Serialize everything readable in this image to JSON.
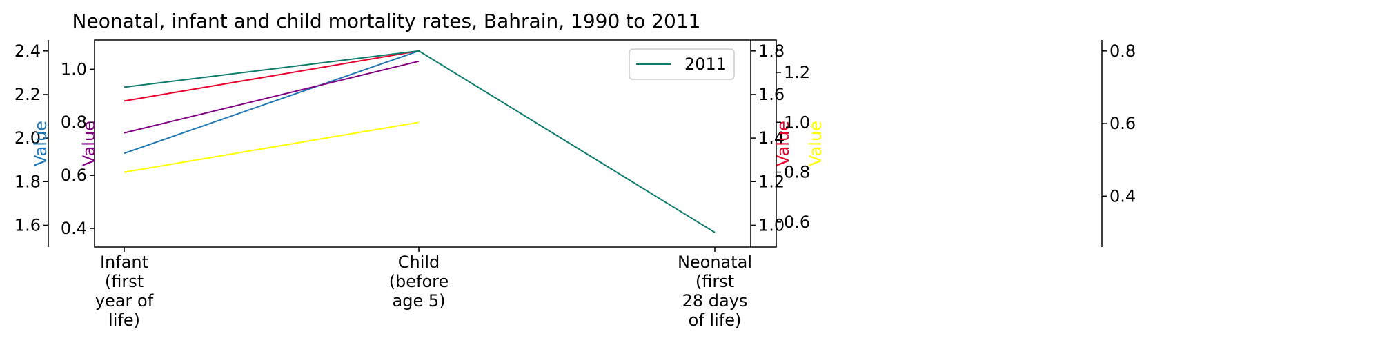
{
  "chart_data": {
    "type": "line",
    "title": "Neonatal, infant and child mortality rates, Bahrain, 1990 to 2011",
    "categories": [
      "Infant\n(first\nyear of\nlife)",
      "Child\n(before\nage 5)",
      "Neonatal\n(first\n28 days\nof life)"
    ],
    "legend": {
      "entries": [
        "2011"
      ],
      "placement": "top-right"
    },
    "axes": [
      {
        "id": "a1",
        "label": "Value",
        "label_color": "#1f77b4",
        "side": "left",
        "range": [
          1.5,
          2.45
        ],
        "ticks": [
          1.6,
          1.8,
          2.0,
          2.2,
          2.4
        ]
      },
      {
        "id": "a2",
        "label": "Value",
        "label_color": "#800080",
        "side": "left",
        "range": [
          0.33,
          1.11
        ],
        "ticks": [
          0.4,
          0.6,
          0.8,
          1.0
        ]
      },
      {
        "id": "a3",
        "label": "Value",
        "label_color": "#e8002d",
        "side": "right",
        "range": [
          0.9,
          1.85
        ],
        "ticks": [
          1.0,
          1.2,
          1.4,
          1.6,
          1.8
        ]
      },
      {
        "id": "a4",
        "label": "Value",
        "label_color": "#ffff00",
        "side": "right",
        "range": [
          0.5,
          1.33
        ],
        "ticks": [
          0.6,
          0.8,
          1.0,
          1.2
        ]
      },
      {
        "id": "a5",
        "label": "",
        "label_color": "#000000",
        "side": "right",
        "range": [
          0.26,
          0.83
        ],
        "ticks": [
          0.4,
          0.6,
          0.8
        ]
      }
    ],
    "series": [
      {
        "axis": "a1",
        "color": "#1f77b4",
        "values": [
          1.93,
          2.4,
          null
        ]
      },
      {
        "axis": "a2",
        "color": "#800080",
        "values": [
          0.76,
          1.03,
          null
        ]
      },
      {
        "axis": "a3",
        "color": "#e8002d",
        "values": [
          1.57,
          1.8,
          null
        ]
      },
      {
        "axis": "a4",
        "color": "#ffff00",
        "values": [
          0.8,
          1.0,
          null
        ]
      },
      {
        "axis": "a5",
        "color": "#0e7b6b",
        "name": "2011",
        "values": [
          0.7,
          0.8,
          0.3
        ]
      }
    ]
  }
}
